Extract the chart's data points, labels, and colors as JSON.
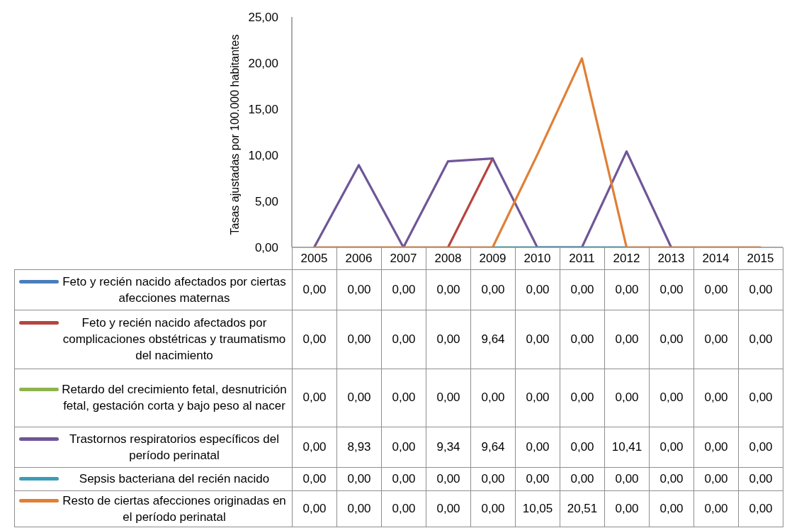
{
  "chart_data": {
    "type": "line",
    "ylabel": "Tasas ajustadas por 100.000 habitantes",
    "categories": [
      "2005",
      "2006",
      "2007",
      "2008",
      "2009",
      "2010",
      "2011",
      "2012",
      "2013",
      "2014",
      "2015"
    ],
    "ylim": [
      0,
      25
    ],
    "yticks": [
      {
        "value": 0,
        "label": "0,00"
      },
      {
        "value": 5,
        "label": "5,00"
      },
      {
        "value": 10,
        "label": "10,00"
      },
      {
        "value": 15,
        "label": "15,00"
      },
      {
        "value": 20,
        "label": "20,00"
      },
      {
        "value": 25,
        "label": "25,00"
      }
    ],
    "legend": "bottom",
    "series": [
      {
        "name": "Feto y recién nacido afectados por ciertas afecciones maternas",
        "color": "#4a7ebb",
        "values": [
          null,
          null,
          null,
          null,
          null,
          null,
          null,
          null,
          null,
          null,
          null
        ],
        "value_labels": [
          "0,00",
          "0,00",
          "0,00",
          "0,00",
          "0,00",
          "0,00",
          "0,00",
          "0,00",
          "0,00",
          "0,00",
          "0,00"
        ]
      },
      {
        "name": "Feto y recién nacido afectados por complicaciones obstétricas y traumatismo del nacimiento",
        "color": "#b7443f",
        "values": [
          null,
          null,
          null,
          0,
          9.64,
          null,
          null,
          null,
          null,
          null,
          null
        ],
        "value_labels": [
          "0,00",
          "0,00",
          "0,00",
          "0,00",
          "9,64",
          "0,00",
          "0,00",
          "0,00",
          "0,00",
          "0,00",
          "0,00"
        ]
      },
      {
        "name": "Retardo del crecimiento fetal, desnutrición fetal, gestación corta y bajo peso al nacer",
        "color": "#8eb44f",
        "values": [
          null,
          null,
          null,
          null,
          null,
          null,
          null,
          null,
          null,
          null,
          null
        ],
        "value_labels": [
          "0,00",
          "0,00",
          "0,00",
          "0,00",
          "0,00",
          "0,00",
          "0,00",
          "0,00",
          "0,00",
          "0,00",
          "0,00"
        ]
      },
      {
        "name": "Trastornos respiratorios específicos del período perinatal",
        "color": "#6f5697",
        "values": [
          0,
          8.93,
          0,
          9.34,
          9.64,
          0,
          0,
          10.41,
          0,
          null,
          null
        ],
        "value_labels": [
          "0,00",
          "8,93",
          "0,00",
          "9,34",
          "9,64",
          "0,00",
          "0,00",
          "10,41",
          "0,00",
          "0,00",
          "0,00"
        ]
      },
      {
        "name": "Sepsis bacteriana del recién nacido",
        "color": "#3d9cb5",
        "values": [
          null,
          null,
          null,
          null,
          0,
          0,
          0,
          0,
          null,
          null,
          null
        ],
        "value_labels": [
          "0,00",
          "0,00",
          "0,00",
          "0,00",
          "0,00",
          "0,00",
          "0,00",
          "0,00",
          "0,00",
          "0,00",
          "0,00"
        ]
      },
      {
        "name": "Resto de ciertas afecciones originadas en el período perinatal",
        "color": "#e07f35",
        "values": [
          0,
          0,
          0,
          0,
          0,
          10.05,
          20.51,
          0,
          0,
          0,
          0
        ],
        "value_labels": [
          "0,00",
          "0,00",
          "0,00",
          "0,00",
          "0,00",
          "10,05",
          "20,51",
          "0,00",
          "0,00",
          "0,00",
          "0,00"
        ]
      }
    ]
  }
}
